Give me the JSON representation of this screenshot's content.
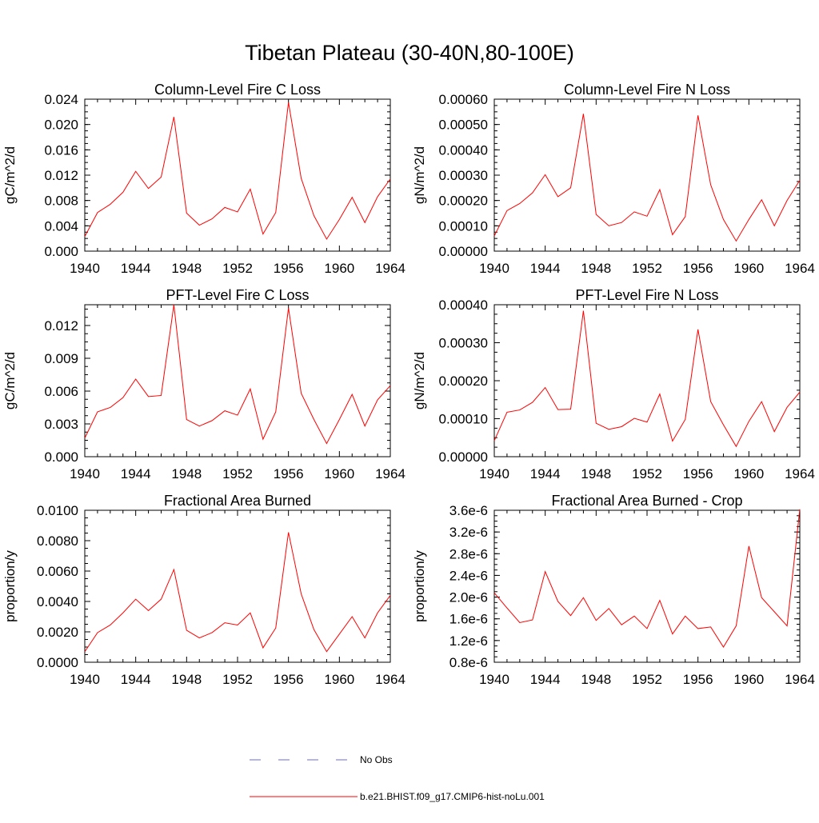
{
  "figure": {
    "title": "Tibetan Plateau (30-40N,80-100E)",
    "legend": [
      {
        "label": "No Obs",
        "color": "#6b6bcf",
        "style": "dashed"
      },
      {
        "label": "b.e21.BHIST.f09_g17.CMIP6-hist-noLu.001",
        "color": "#ff0000",
        "style": "solid"
      }
    ]
  },
  "chart_data": [
    {
      "type": "line",
      "title": "Column-Level Fire C Loss",
      "xlabel": "",
      "ylabel": "gC/m^2/d",
      "xlim": [
        1940,
        1964
      ],
      "ylim": [
        0,
        0.024
      ],
      "xticks": [
        "1940",
        "1944",
        "1948",
        "1952",
        "1956",
        "1960",
        "1964"
      ],
      "yticks": [
        "0.000",
        "0.004",
        "0.008",
        "0.012",
        "0.016",
        "0.020",
        "0.024"
      ],
      "color": "#ff0000",
      "x": [
        1940,
        1941,
        1942,
        1943,
        1944,
        1945,
        1946,
        1947,
        1948,
        1949,
        1950,
        1951,
        1952,
        1953,
        1954,
        1955,
        1956,
        1957,
        1958,
        1959,
        1960,
        1961,
        1962,
        1963,
        1964
      ],
      "values": [
        0.0023,
        0.0061,
        0.0074,
        0.0093,
        0.0126,
        0.0099,
        0.0117,
        0.0212,
        0.006,
        0.0041,
        0.0051,
        0.0069,
        0.0062,
        0.0098,
        0.0027,
        0.0061,
        0.0235,
        0.0115,
        0.0056,
        0.0019,
        0.005,
        0.0085,
        0.0045,
        0.0086,
        0.0114
      ]
    },
    {
      "type": "line",
      "title": "Column-Level Fire N Loss",
      "xlabel": "",
      "ylabel": "gN/m^2/d",
      "xlim": [
        1940,
        1964
      ],
      "ylim": [
        0,
        0.0006
      ],
      "xticks": [
        "1940",
        "1944",
        "1948",
        "1952",
        "1956",
        "1960",
        "1964"
      ],
      "yticks": [
        "0.00000",
        "0.00010",
        "0.00020",
        "0.00030",
        "0.00040",
        "0.00050",
        "0.00060"
      ],
      "color": "#ff0000",
      "x": [
        1940,
        1941,
        1942,
        1943,
        1944,
        1945,
        1946,
        1947,
        1948,
        1949,
        1950,
        1951,
        1952,
        1953,
        1954,
        1955,
        1956,
        1957,
        1958,
        1959,
        1960,
        1961,
        1962,
        1963,
        1964
      ],
      "values": [
        6e-05,
        0.00016,
        0.000188,
        0.00023,
        0.000302,
        0.000215,
        0.00025,
        0.000542,
        0.000145,
        0.0001,
        0.000113,
        0.000155,
        0.000138,
        0.000243,
        6.5e-05,
        0.000136,
        0.000536,
        0.000262,
        0.000125,
        4e-05,
        0.000125,
        0.000203,
        0.0001,
        0.0002,
        0.00028
      ]
    },
    {
      "type": "line",
      "title": "PFT-Level Fire C Loss",
      "xlabel": "",
      "ylabel": "gC/m^2/d",
      "xlim": [
        1940,
        1964
      ],
      "ylim": [
        0,
        0.0139
      ],
      "xticks": [
        "1940",
        "1944",
        "1948",
        "1952",
        "1956",
        "1960",
        "1964"
      ],
      "yticks": [
        "0.000",
        "0.003",
        "0.006",
        "0.009",
        "0.012"
      ],
      "ytickvals": [
        0,
        0.003,
        0.006,
        0.009,
        0.012
      ],
      "color": "#ff0000",
      "x": [
        1940,
        1941,
        1942,
        1943,
        1944,
        1945,
        1946,
        1947,
        1948,
        1949,
        1950,
        1951,
        1952,
        1953,
        1954,
        1955,
        1956,
        1957,
        1958,
        1959,
        1960,
        1961,
        1962,
        1963,
        1964
      ],
      "values": [
        0.0017,
        0.0041,
        0.0045,
        0.0054,
        0.0071,
        0.0055,
        0.0056,
        0.0139,
        0.0034,
        0.0028,
        0.0033,
        0.0042,
        0.0038,
        0.0062,
        0.0016,
        0.0041,
        0.0136,
        0.0058,
        0.0034,
        0.0012,
        0.0034,
        0.0057,
        0.0028,
        0.0052,
        0.0065
      ]
    },
    {
      "type": "line",
      "title": "PFT-Level Fire N Loss",
      "xlabel": "",
      "ylabel": "gN/m^2/d",
      "xlim": [
        1940,
        1964
      ],
      "ylim": [
        0,
        0.0004
      ],
      "xticks": [
        "1940",
        "1944",
        "1948",
        "1952",
        "1956",
        "1960",
        "1964"
      ],
      "yticks": [
        "0.00000",
        "0.00010",
        "0.00020",
        "0.00030",
        "0.00040"
      ],
      "color": "#ff0000",
      "x": [
        1940,
        1941,
        1942,
        1943,
        1944,
        1945,
        1946,
        1947,
        1948,
        1949,
        1950,
        1951,
        1952,
        1953,
        1954,
        1955,
        1956,
        1957,
        1958,
        1959,
        1960,
        1961,
        1962,
        1963,
        1964
      ],
      "values": [
        4.2e-05,
        0.000117,
        0.000123,
        0.000143,
        0.000182,
        0.000124,
        0.000125,
        0.000384,
        8.8e-05,
        7.2e-05,
        7.9e-05,
        0.000101,
        9.1e-05,
        0.000165,
        4.1e-05,
        9.8e-05,
        0.000335,
        0.000145,
        8.4e-05,
        2.7e-05,
        9.3e-05,
        0.000145,
        6.6e-05,
        0.00013,
        0.00017
      ]
    },
    {
      "type": "line",
      "title": "Fractional Area Burned",
      "xlabel": "",
      "ylabel": "proportion/y",
      "xlim": [
        1940,
        1964
      ],
      "ylim": [
        0,
        0.01
      ],
      "xticks": [
        "1940",
        "1944",
        "1948",
        "1952",
        "1956",
        "1960",
        "1964"
      ],
      "yticks": [
        "0.0000",
        "0.0020",
        "0.0040",
        "0.0060",
        "0.0080",
        "0.0100"
      ],
      "color": "#ff0000",
      "x": [
        1940,
        1941,
        1942,
        1943,
        1944,
        1945,
        1946,
        1947,
        1948,
        1949,
        1950,
        1951,
        1952,
        1953,
        1954,
        1955,
        1956,
        1957,
        1958,
        1959,
        1960,
        1961,
        1962,
        1963,
        1964
      ],
      "values": [
        0.00069,
        0.00195,
        0.00245,
        0.00325,
        0.00415,
        0.0034,
        0.00415,
        0.0061,
        0.0021,
        0.0016,
        0.00195,
        0.0026,
        0.00245,
        0.00325,
        0.00095,
        0.00225,
        0.00855,
        0.0045,
        0.00215,
        0.0007,
        0.00185,
        0.003,
        0.0016,
        0.00325,
        0.0044
      ]
    },
    {
      "type": "line",
      "title": "Fractional Area Burned - Crop",
      "xlabel": "",
      "ylabel": "proportion/y",
      "xlim": [
        1940,
        1964
      ],
      "ylim": [
        8e-07,
        3.6e-06
      ],
      "xticks": [
        "1940",
        "1944",
        "1948",
        "1952",
        "1956",
        "1960",
        "1964"
      ],
      "yticks": [
        "0.8e-6",
        "1.2e-6",
        "1.6e-6",
        "2.0e-6",
        "2.4e-6",
        "2.8e-6",
        "3.2e-6",
        "3.6e-6"
      ],
      "color": "#ff0000",
      "x": [
        1940,
        1941,
        1942,
        1943,
        1944,
        1945,
        1946,
        1947,
        1948,
        1949,
        1950,
        1951,
        1952,
        1953,
        1954,
        1955,
        1956,
        1957,
        1958,
        1959,
        1960,
        1961,
        1962,
        1963,
        1964
      ],
      "values": [
        2.08e-06,
        1.8e-06,
        1.53e-06,
        1.58e-06,
        2.47e-06,
        1.92e-06,
        1.66e-06,
        1.99e-06,
        1.57e-06,
        1.79e-06,
        1.49e-06,
        1.65e-06,
        1.42e-06,
        1.94e-06,
        1.32e-06,
        1.65e-06,
        1.42e-06,
        1.45e-06,
        1.08e-06,
        1.47e-06,
        2.94e-06,
        1.99e-06,
        1.73e-06,
        1.47e-06,
        3.62e-06
      ]
    }
  ]
}
